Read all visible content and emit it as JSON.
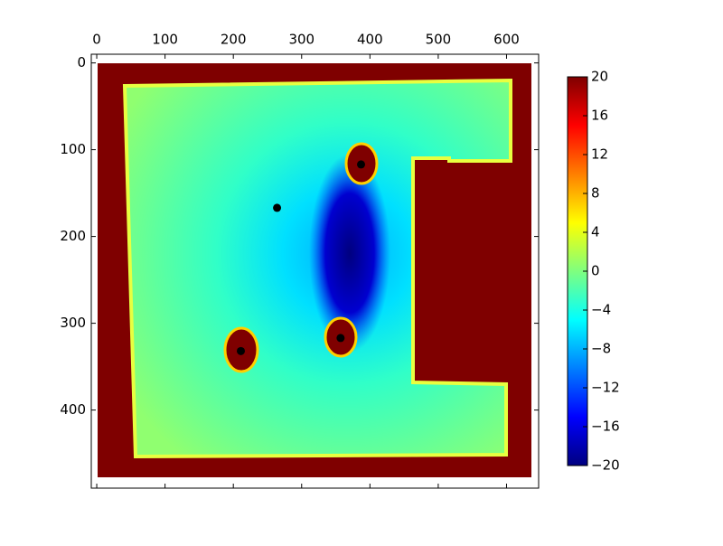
{
  "chart_data": {
    "type": "heatmap",
    "xlim": [
      -8,
      647
    ],
    "ylim": [
      490,
      -10
    ],
    "xticks": [
      0,
      100,
      200,
      300,
      400,
      500,
      600
    ],
    "yticks": [
      0,
      100,
      200,
      300,
      400
    ],
    "points": {
      "x": [
        264,
        387,
        357,
        211
      ],
      "y": [
        167,
        117,
        317,
        332
      ],
      "color": "#000000"
    },
    "colorbar": {
      "clim": [
        -20,
        20
      ],
      "ticks": [
        {
          "value": -20,
          "label": "−20"
        },
        {
          "value": -16,
          "label": "−16"
        },
        {
          "value": -12,
          "label": "−12"
        },
        {
          "value": -8,
          "label": "−8"
        },
        {
          "value": -4,
          "label": "−4"
        },
        0,
        4,
        8,
        12,
        16,
        20
      ],
      "colors": [
        "#00007f",
        "#0000ff",
        "#007fff",
        "#00ffff",
        "#7fff7f",
        "#ffff00",
        "#ff7f00",
        "#ff0000",
        "#7f0000"
      ]
    }
  }
}
